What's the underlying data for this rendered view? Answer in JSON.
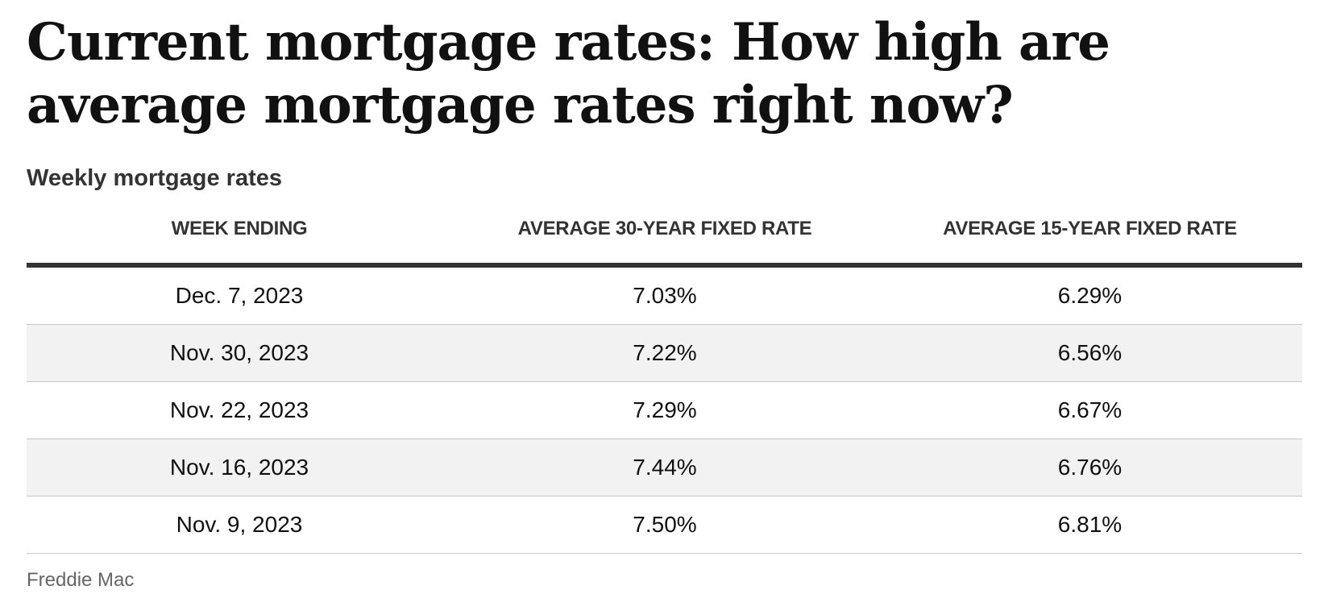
{
  "headline": "Current mortgage rates: How high are average mortgage rates right now?",
  "subhead": "Weekly mortgage rates",
  "table": {
    "headers": [
      "WEEK ENDING",
      "AVERAGE 30-YEAR FIXED RATE",
      "AVERAGE 15-YEAR FIXED RATE"
    ],
    "rows": [
      [
        "Dec. 7, 2023",
        "7.03%",
        "6.29%"
      ],
      [
        "Nov. 30, 2023",
        "7.22%",
        "6.56%"
      ],
      [
        "Nov. 22, 2023",
        "7.29%",
        "6.67%"
      ],
      [
        "Nov. 16, 2023",
        "7.44%",
        "6.76%"
      ],
      [
        "Nov. 9, 2023",
        "7.50%",
        "6.81%"
      ]
    ]
  },
  "source": "Freddie Mac",
  "colors": {
    "text": "#111111",
    "header_rule": "#333333",
    "row_stripe": "#f2f2f2",
    "row_divider": "#c8c8c8",
    "source_text": "#666666"
  }
}
